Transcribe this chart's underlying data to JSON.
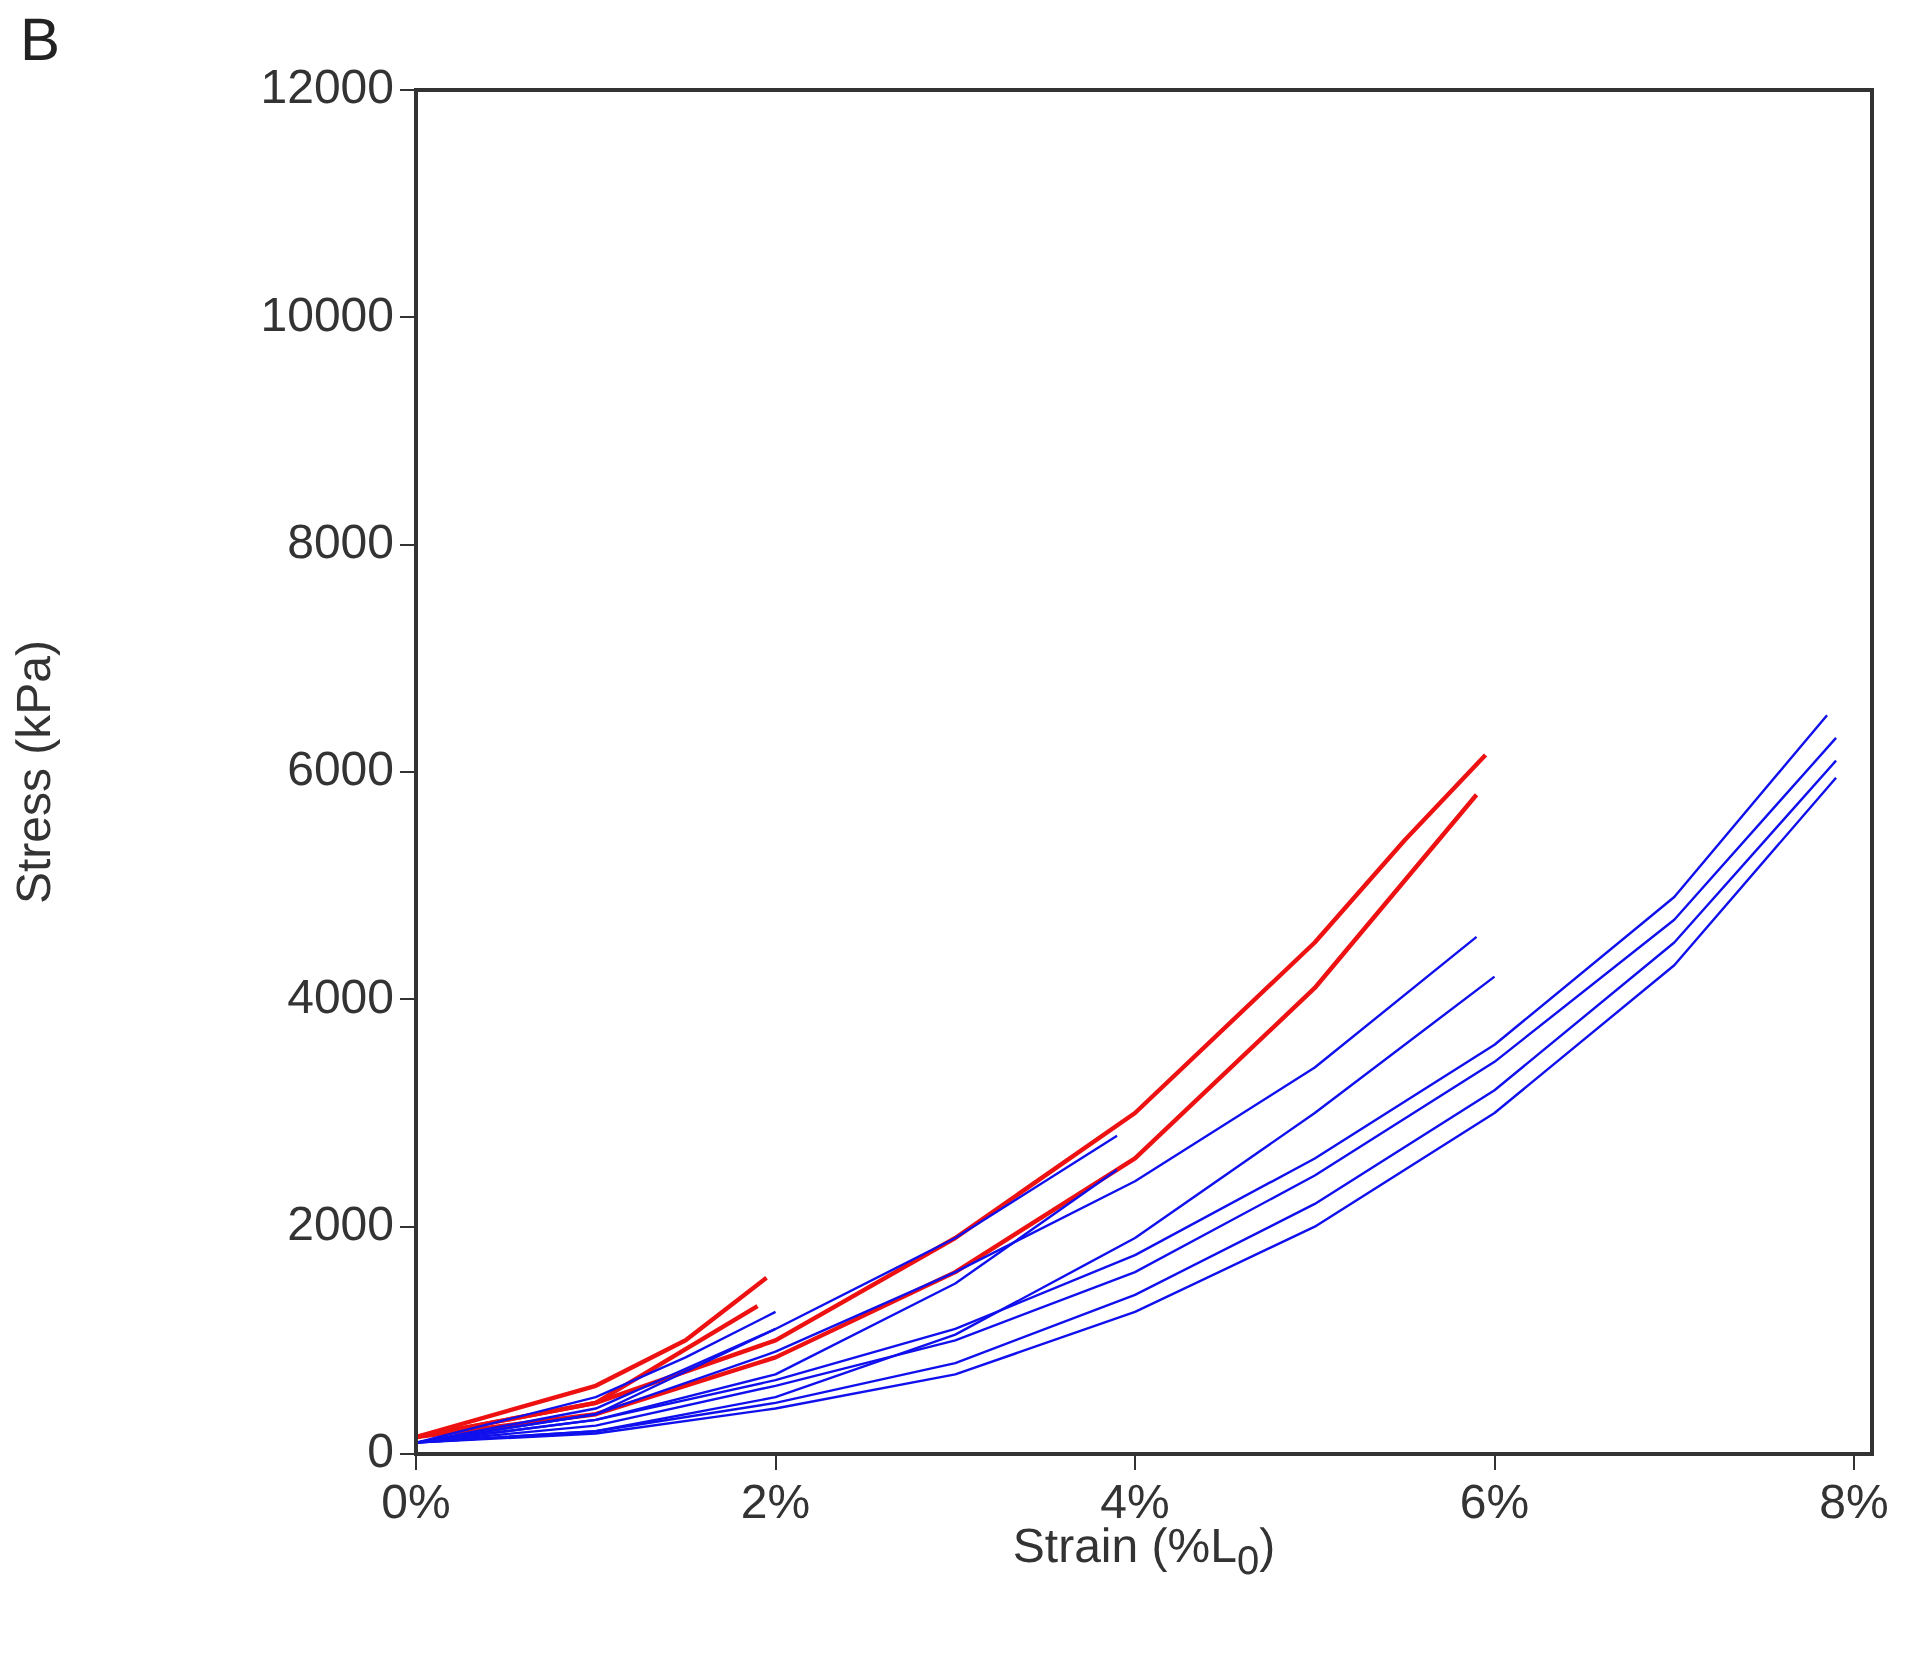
{
  "chart_data": {
    "type": "line",
    "xlabel": "Strain (%L$_{0}$)",
    "ylabel": "Stress (kPa)",
    "annotations": [
      "B"
    ],
    "xlim": [
      0,
      8.1
    ],
    "xticks": [
      {
        "value": 0,
        "label": "0%"
      },
      {
        "value": 2,
        "label": "2%"
      },
      {
        "value": 4,
        "label": "4%"
      },
      {
        "value": 6,
        "label": "6%"
      },
      {
        "value": 8,
        "label": "8%"
      }
    ],
    "ylim": [
      0,
      12000
    ],
    "yticks": [
      0,
      2000,
      4000,
      6000,
      8000,
      10000,
      12000
    ],
    "grid": false,
    "legend": false,
    "series": [
      {
        "color": "#1010ee",
        "x": [
          0,
          1,
          2,
          3,
          4,
          5,
          6,
          7,
          7.85
        ],
        "values": [
          100,
          300,
          650,
          1100,
          1750,
          2600,
          3600,
          4900,
          6500
        ]
      },
      {
        "color": "#1010ee",
        "x": [
          0,
          1,
          2,
          3,
          4,
          5,
          6,
          7,
          7.9
        ],
        "values": [
          100,
          200,
          450,
          800,
          1400,
          2200,
          3200,
          4500,
          6100
        ]
      },
      {
        "color": "#1010ee",
        "x": [
          0,
          1,
          2,
          3,
          4,
          5,
          6,
          7,
          7.9
        ],
        "values": [
          100,
          250,
          600,
          1000,
          1600,
          2450,
          3450,
          4700,
          6300
        ]
      },
      {
        "color": "#1010ee",
        "x": [
          0,
          1,
          2,
          3,
          4,
          5,
          6,
          7,
          7.9
        ],
        "values": [
          100,
          180,
          400,
          700,
          1250,
          2000,
          3000,
          4300,
          5950
        ]
      },
      {
        "color": "#1010ee",
        "x": [
          0,
          1,
          2,
          3,
          4,
          5,
          5.9
        ],
        "values": [
          100,
          350,
          900,
          1600,
          2400,
          3400,
          4550
        ]
      },
      {
        "color": "#1010ee",
        "x": [
          0,
          1,
          2,
          3,
          4,
          5,
          6
        ],
        "values": [
          100,
          200,
          500,
          1050,
          1900,
          3000,
          4200
        ]
      },
      {
        "color": "#1010ee",
        "x": [
          0,
          1,
          2,
          3,
          3.9
        ],
        "values": [
          100,
          400,
          1100,
          1900,
          2800
        ]
      },
      {
        "color": "#1010ee",
        "x": [
          0,
          1,
          2,
          3,
          3.9
        ],
        "values": [
          100,
          300,
          700,
          1500,
          2500
        ]
      },
      {
        "color": "#1010ee",
        "x": [
          0,
          1,
          1.5,
          2
        ],
        "values": [
          100,
          500,
          850,
          1250
        ]
      },
      {
        "color": "#1010ee",
        "x": [
          0,
          1,
          2
        ],
        "values": [
          100,
          350,
          1100
        ]
      },
      {
        "color": "#ee1111",
        "x": [
          0,
          1,
          1.5,
          1.95
        ],
        "values": [
          150,
          600,
          1000,
          1550
        ]
      },
      {
        "color": "#ee1111",
        "x": [
          0,
          1,
          1.9
        ],
        "values": [
          150,
          450,
          1300
        ]
      },
      {
        "color": "#ee1111",
        "x": [
          0,
          1,
          2,
          3,
          4,
          5,
          5.5,
          5.95
        ],
        "values": [
          150,
          450,
          1000,
          1900,
          3000,
          4500,
          5400,
          6150
        ]
      },
      {
        "color": "#ee1111",
        "x": [
          0,
          1,
          2,
          3,
          4,
          5,
          5.9
        ],
        "values": [
          150,
          350,
          850,
          1600,
          2600,
          4100,
          5800
        ]
      }
    ]
  }
}
